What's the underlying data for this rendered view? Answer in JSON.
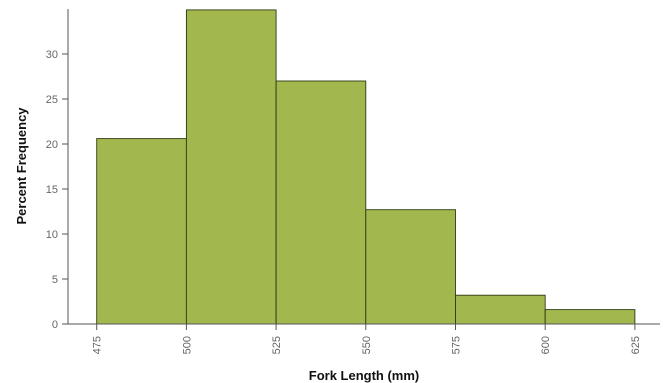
{
  "chart_data": {
    "type": "bar",
    "subtype": "histogram",
    "bin_edges": [
      475,
      500,
      525,
      550,
      575,
      600,
      625
    ],
    "values": [
      20.6,
      34.9,
      27.0,
      12.7,
      3.2,
      1.6
    ],
    "xlabel": "Fork Length (mm)",
    "ylabel": "Percent Frequency",
    "x_ticks": [
      "475",
      "500",
      "525",
      "550",
      "575",
      "600",
      "625"
    ],
    "y_ticks": [
      "0",
      "5",
      "10",
      "15",
      "20",
      "25",
      "30"
    ],
    "xlim": [
      467,
      632
    ],
    "ylim": [
      0,
      35
    ],
    "grid": false,
    "colors": {
      "bar_fill": "#a2b84e",
      "bar_stroke": "#2f3a10",
      "axis": "#555555"
    }
  }
}
